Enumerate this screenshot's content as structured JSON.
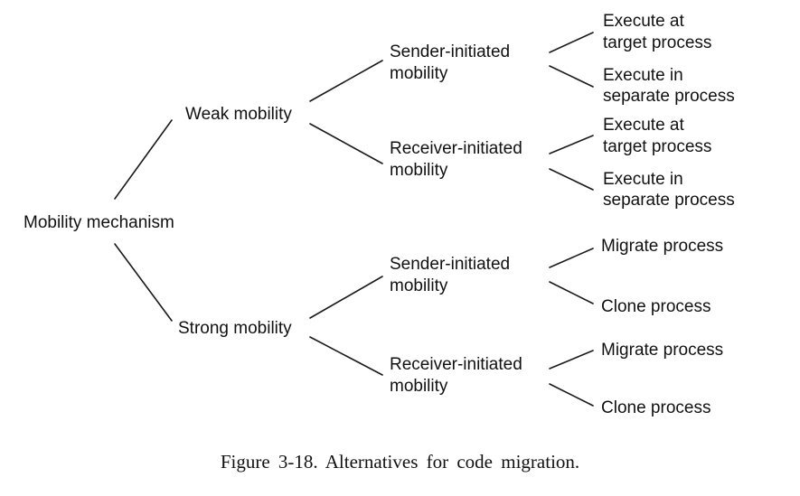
{
  "diagram": {
    "root": "Mobility mechanism",
    "branches": [
      {
        "label": "Weak mobility",
        "children": [
          {
            "label_lines": [
              "Sender-initiated",
              "mobility"
            ],
            "leaves": [
              [
                "Execute at",
                "target process"
              ],
              [
                "Execute in",
                "separate process"
              ]
            ]
          },
          {
            "label_lines": [
              "Receiver-initiated",
              "mobility"
            ],
            "leaves": [
              [
                "Execute at",
                "target process"
              ],
              [
                "Execute in",
                "separate process"
              ]
            ]
          }
        ]
      },
      {
        "label": "Strong mobility",
        "children": [
          {
            "label_lines": [
              "Sender-initiated",
              "mobility"
            ],
            "leaves": [
              [
                "Migrate process"
              ],
              [
                "Clone process"
              ]
            ]
          },
          {
            "label_lines": [
              "Receiver-initiated",
              "mobility"
            ],
            "leaves": [
              [
                "Migrate process"
              ],
              [
                "Clone process"
              ]
            ]
          }
        ]
      }
    ]
  },
  "caption": "Figure  3-18.  Alternatives  for  code  migration."
}
